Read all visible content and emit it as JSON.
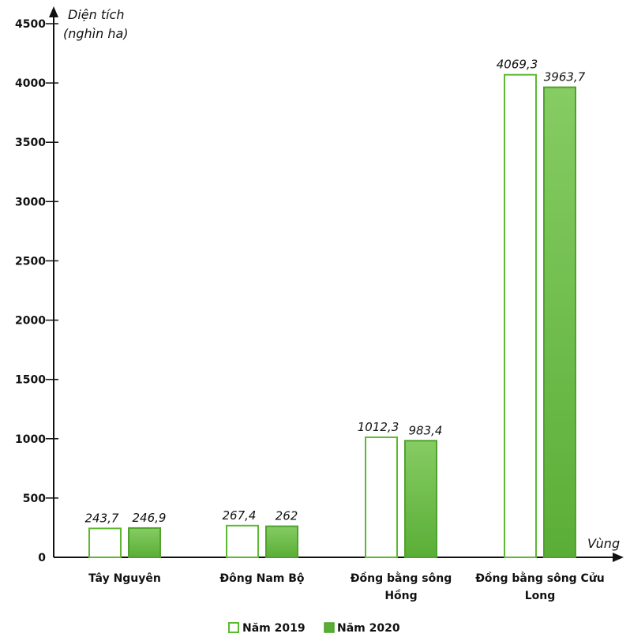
{
  "chart_data": {
    "type": "bar",
    "ylabel_line1": "Diện tích",
    "ylabel_line2": "(nghìn ha)",
    "xlabel": "Vùng",
    "ylim": [
      0,
      4500
    ],
    "yticks": [
      0,
      500,
      1000,
      1500,
      2000,
      2500,
      3000,
      3500,
      4000,
      4500
    ],
    "categories": [
      [
        "Tây Nguyên"
      ],
      [
        "Đông Nam Bộ"
      ],
      [
        "Đồng bằng sông",
        "Hồng"
      ],
      [
        "Đồng bằng sông Cửu",
        "Long"
      ]
    ],
    "series": [
      {
        "name": "Năm 2019",
        "values": [
          243.7,
          267.4,
          1012.3,
          4069.3
        ],
        "labels": [
          "243,7",
          "267,4",
          "1012,3",
          "4069,3"
        ],
        "fill": "#ffffff",
        "stroke": "#5cb82e"
      },
      {
        "name": "Năm 2020",
        "values": [
          246.9,
          262,
          983.4,
          3963.7
        ],
        "labels": [
          "246,9",
          "262",
          "983,4",
          "3963,7"
        ],
        "fill": "#6fbf4d",
        "stroke": "#4fa32c"
      }
    ],
    "legend_position": "bottom-center",
    "grid": false
  }
}
